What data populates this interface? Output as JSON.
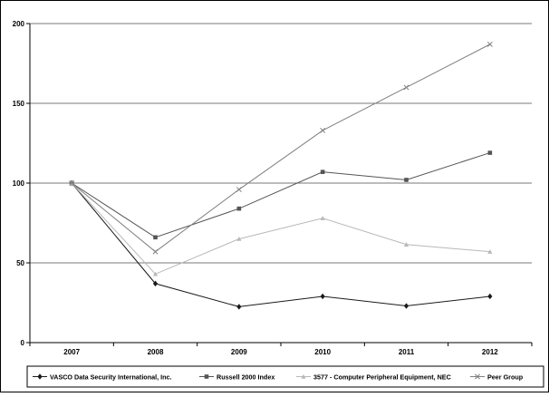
{
  "chart_data": {
    "type": "line",
    "title": "",
    "xlabel": "",
    "ylabel": "",
    "categories": [
      "2007",
      "2008",
      "2009",
      "2010",
      "2011",
      "2012"
    ],
    "ylim": [
      0,
      200
    ],
    "yticks": [
      "0",
      "50",
      "100",
      "150",
      "200"
    ],
    "grid": "horizontal",
    "legend_position": "bottom",
    "series": [
      {
        "name": "VASCO Data Security International, Inc.",
        "values": [
          100,
          37,
          22.5,
          29,
          23,
          29
        ],
        "color": "#1a1a1a",
        "marker": "diamond"
      },
      {
        "name": "Russell 2000 Index",
        "values": [
          100,
          66,
          84,
          107,
          102,
          119
        ],
        "color": "#555555",
        "marker": "square"
      },
      {
        "name": "3577 - Computer Peripheral Equipment, NEC",
        "values": [
          100,
          43,
          65,
          78,
          61.5,
          57
        ],
        "color": "#b8b8b8",
        "marker": "triangle"
      },
      {
        "name": "Peer Group",
        "values": [
          100,
          57,
          96,
          133,
          160,
          187
        ],
        "color": "#7f7f7f",
        "marker": "x"
      }
    ]
  }
}
